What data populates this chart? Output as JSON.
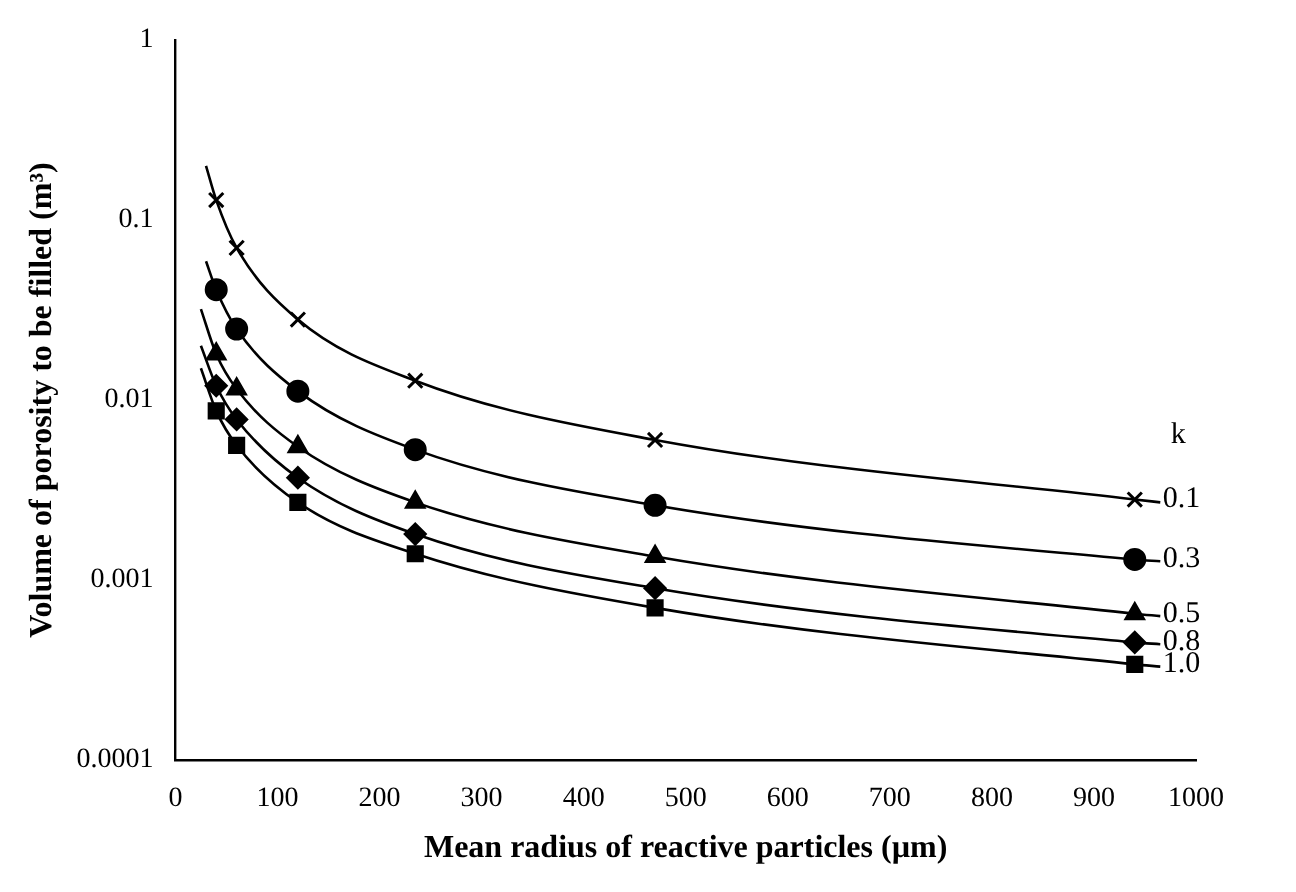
{
  "chart_data": {
    "type": "scatter",
    "xlabel": "Mean radius of reactive particles (µm)",
    "ylabel": "Volume of porosity to be filled (m³)",
    "legend_title": "k",
    "x": [
      40,
      60,
      120,
      235,
      470,
      940
    ],
    "series": [
      {
        "name": "0.1",
        "color": "#000000",
        "marker": "cross",
        "values": [
          0.129,
          0.07,
          0.028,
          0.0128,
          0.006,
          0.0028
        ]
      },
      {
        "name": "0.3",
        "color": "#000000",
        "marker": "circle",
        "values": [
          0.041,
          0.0248,
          0.0112,
          0.0053,
          0.0026,
          0.0013
        ]
      },
      {
        "name": "0.5",
        "color": "#000000",
        "marker": "triangle",
        "values": [
          0.018,
          0.0115,
          0.0055,
          0.0027,
          0.00135,
          0.00065
        ]
      },
      {
        "name": "0.8",
        "color": "#000000",
        "marker": "diamond",
        "values": [
          0.012,
          0.0078,
          0.0037,
          0.0018,
          0.0009,
          0.00045
        ]
      },
      {
        "name": "1.0",
        "color": "#000000",
        "marker": "square",
        "values": [
          0.0087,
          0.0056,
          0.0027,
          0.0014,
          0.0007,
          0.00034
        ]
      },
      {
        "type": "line",
        "color": "#000000",
        "x": [
          30,
          40,
          60,
          120,
          235,
          470,
          940,
          965
        ],
        "values": [
          0.2,
          0.129,
          0.07,
          0.028,
          0.0128,
          0.006,
          0.0028,
          0.0027
        ]
      },
      {
        "type": "line",
        "color": "#000000",
        "x": [
          30,
          40,
          60,
          120,
          235,
          470,
          940,
          965
        ],
        "values": [
          0.059,
          0.041,
          0.0248,
          0.0112,
          0.0053,
          0.0026,
          0.0013,
          0.00127
        ]
      },
      {
        "type": "line",
        "color": "#000000",
        "x": [
          25,
          40,
          60,
          120,
          235,
          470,
          940,
          965
        ],
        "values": [
          0.032,
          0.018,
          0.0115,
          0.0055,
          0.0027,
          0.00135,
          0.00065,
          0.00063
        ]
      },
      {
        "type": "line",
        "color": "#000000",
        "x": [
          25,
          40,
          60,
          120,
          235,
          470,
          940,
          965
        ],
        "values": [
          0.02,
          0.012,
          0.0078,
          0.0037,
          0.0018,
          0.0009,
          0.00045,
          0.00044
        ]
      },
      {
        "type": "line",
        "color": "#000000",
        "x": [
          25,
          40,
          60,
          120,
          235,
          470,
          940,
          965
        ],
        "values": [
          0.015,
          0.0087,
          0.0056,
          0.0027,
          0.0014,
          0.0007,
          0.00034,
          0.00033
        ]
      }
    ],
    "xlim": [
      0,
      1000
    ],
    "xticks": [
      0,
      100,
      200,
      300,
      400,
      500,
      600,
      700,
      800,
      900,
      1000
    ],
    "ylim": [
      0.0001,
      1
    ],
    "yticks": [
      0.0001,
      0.001,
      0.01,
      0.1,
      1
    ],
    "log": "y",
    "grid": false,
    "legend": false,
    "line_style": "solid"
  }
}
